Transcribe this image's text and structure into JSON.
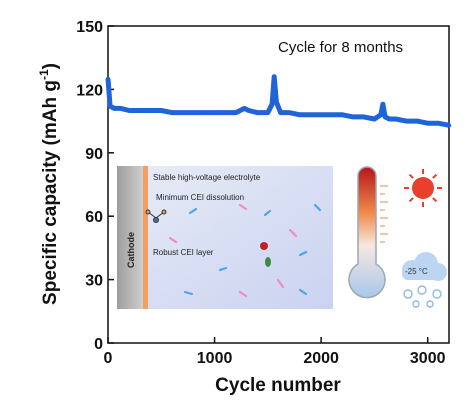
{
  "chart_data": {
    "type": "scatter",
    "title": "",
    "xlabel": "Cycle number",
    "ylabel_main": "Specific capacity (mAh g",
    "ylabel_sup": "-1",
    "ylabel_close": ")",
    "xlim": [
      0,
      3200
    ],
    "ylim": [
      0,
      150
    ],
    "xticks": [
      0,
      1000,
      2000,
      3000
    ],
    "yticks": [
      0,
      30,
      60,
      90,
      120,
      150
    ],
    "annotation": "Cycle for 8 months",
    "marker_color": "#1f64d8",
    "series": [
      {
        "x": [
          0,
          20,
          60,
          120,
          200,
          300,
          400,
          500,
          600,
          700,
          800,
          900,
          1000,
          1100,
          1200,
          1280,
          1320,
          1400,
          1500,
          1540,
          1560,
          1580,
          1620,
          1700,
          1800,
          1900,
          2000,
          2100,
          2200,
          2300,
          2400,
          2500,
          2560,
          2580,
          2600,
          2640,
          2700,
          2800,
          2900,
          3000,
          3100,
          3200
        ],
        "y": [
          125,
          112,
          111,
          111,
          110,
          110,
          110,
          110,
          109,
          109,
          109,
          109,
          109,
          109,
          109,
          111,
          110,
          109,
          109,
          113,
          126,
          114,
          109,
          109,
          108,
          108,
          108,
          108,
          108,
          107,
          107,
          106,
          108,
          113,
          107,
          106,
          106,
          105,
          105,
          104,
          104,
          103
        ]
      }
    ]
  },
  "inset": {
    "cathode_label": "Cathode",
    "electrolyte_label": "Stable high-voltage electrolyte",
    "cei_dissolution_label": "Minimum CEI dissolution",
    "cei_layer_label": "Robust CEI layer",
    "low_temp_label": "-25 °C",
    "hot_color": "#e8402a",
    "cold_color": "#8fb9e6"
  }
}
